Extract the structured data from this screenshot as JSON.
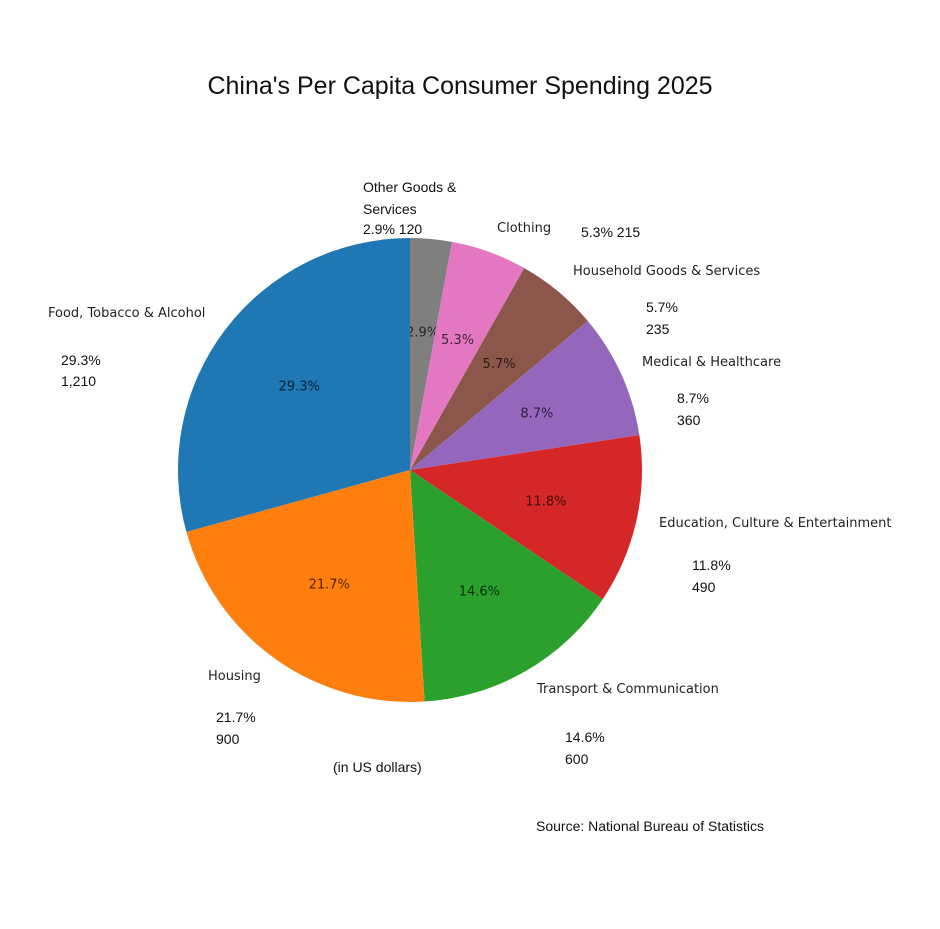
{
  "title": "China's Per Capita Consumer Spending 2025",
  "unit_note": "(in US dollars)",
  "source": "Source: National Bureau of Statistics",
  "chart_data": {
    "type": "pie",
    "title": "China's Per Capita Consumer Spending 2025",
    "subtitle": "(in US dollars)",
    "source": "Source: National Bureau of Statistics",
    "start_angle_deg": 90,
    "direction": "clockwise",
    "slices": [
      {
        "label": "Other Goods & Services",
        "percent": 2.9,
        "value": 120,
        "value_label": "120",
        "pct_label": "2.9%",
        "color": "#7f7f7f"
      },
      {
        "label": "Clothing",
        "percent": 5.3,
        "value": 215,
        "value_label": "215",
        "pct_label": "5.3%",
        "color": "#e377c2"
      },
      {
        "label": "Household Goods & Services",
        "percent": 5.7,
        "value": 235,
        "value_label": "235",
        "pct_label": "5.7%",
        "color": "#8c564b"
      },
      {
        "label": "Medical & Healthcare",
        "percent": 8.7,
        "value": 360,
        "value_label": "360",
        "pct_label": "8.7%",
        "color": "#9467bd"
      },
      {
        "label": "Education, Culture & Entertainment",
        "percent": 11.8,
        "value": 490,
        "value_label": "490",
        "pct_label": "11.8%",
        "color": "#d62728"
      },
      {
        "label": "Transport & Communication",
        "percent": 14.6,
        "value": 600,
        "value_label": "600",
        "pct_label": "14.6%",
        "color": "#2ca02c"
      },
      {
        "label": "Housing",
        "percent": 21.7,
        "value": 900,
        "value_label": "900",
        "pct_label": "21.7%",
        "color": "#ff7f0e"
      },
      {
        "label": "Food, Tobacco & Alcohol",
        "percent": 29.3,
        "value": 1210,
        "value_label": "1,210",
        "pct_label": "29.3%",
        "color": "#1f77b4"
      }
    ]
  },
  "labels": {
    "other_line1": "Other Goods &",
    "other_line2": "Services",
    "other_vals": "2.9% 120",
    "clothing": "Clothing",
    "clothing_vals": "5.3%  215",
    "household": "Household Goods & Services",
    "household_pct": "5.7%",
    "household_val": "235",
    "medical": "Medical & Healthcare",
    "medical_pct": "8.7%",
    "medical_val": "360",
    "education": "Education, Culture & Entertainment",
    "education_pct": "11.8%",
    "education_val": "490",
    "transport": "Transport & Communication",
    "transport_pct": "14.6%",
    "transport_val": "600",
    "housing": "Housing",
    "housing_pct": "21.7%",
    "housing_val": "900",
    "food": "Food, Tobacco & Alcohol",
    "food_pct": "29.3%",
    "food_val": "1,210"
  }
}
